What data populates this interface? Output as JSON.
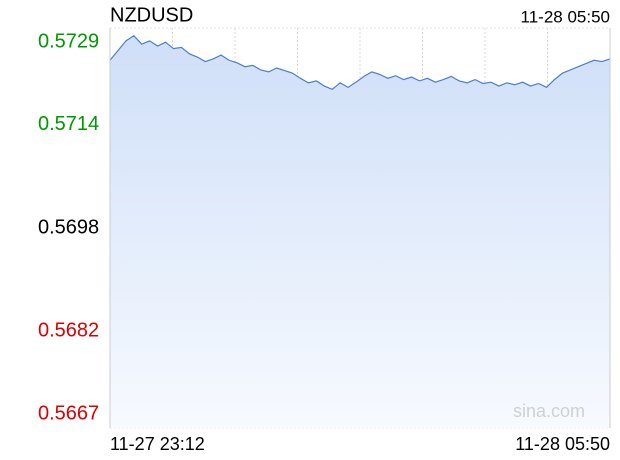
{
  "chart_data": {
    "type": "line",
    "title": "NZDUSD",
    "time": "11-28 05:50",
    "watermark": "sina.com",
    "color": "#4a7ecf",
    "ylim": [
      0.5667,
      0.5729
    ],
    "yticks": [
      0.5667,
      0.5682,
      0.5698,
      0.5714,
      0.5729
    ],
    "ytick_colors": [
      "#dd0000",
      "#dd0000",
      "#000000",
      "#009900",
      "#009900"
    ],
    "xgrid_divisions": 8,
    "categories": [
      "11-27 23:12",
      null,
      null,
      null,
      null,
      null,
      null,
      null,
      null,
      null,
      null,
      null,
      null,
      null,
      null,
      null,
      null,
      null,
      null,
      null,
      null,
      null,
      null,
      null,
      null,
      null,
      null,
      null,
      null,
      null,
      null,
      null,
      null,
      null,
      null,
      null,
      null,
      null,
      null,
      null,
      null,
      null,
      null,
      null,
      null,
      null,
      null,
      null,
      null,
      null,
      null,
      null,
      null,
      null,
      null,
      null,
      null,
      null,
      null,
      null,
      null,
      null,
      null,
      "11-28 05:50"
    ],
    "values": [
      0.5724,
      0.57255,
      0.5727,
      0.57278,
      0.57265,
      0.5727,
      0.57262,
      0.57268,
      0.57258,
      0.5726,
      0.5725,
      0.57245,
      0.57238,
      0.57242,
      0.57248,
      0.5724,
      0.57236,
      0.5723,
      0.57232,
      0.57225,
      0.57222,
      0.57228,
      0.57224,
      0.5722,
      0.57212,
      0.57205,
      0.57208,
      0.572,
      0.57195,
      0.57205,
      0.57198,
      0.57206,
      0.57215,
      0.57222,
      0.57218,
      0.57212,
      0.57216,
      0.5721,
      0.57214,
      0.57208,
      0.57212,
      0.57206,
      0.5721,
      0.57215,
      0.57208,
      0.57205,
      0.5721,
      0.57204,
      0.57206,
      0.572,
      0.57205,
      0.57202,
      0.57206,
      0.572,
      0.57204,
      0.57198,
      0.5721,
      0.5722,
      0.57225,
      0.5723,
      0.57235,
      0.5724,
      0.57238,
      0.57242
    ]
  }
}
